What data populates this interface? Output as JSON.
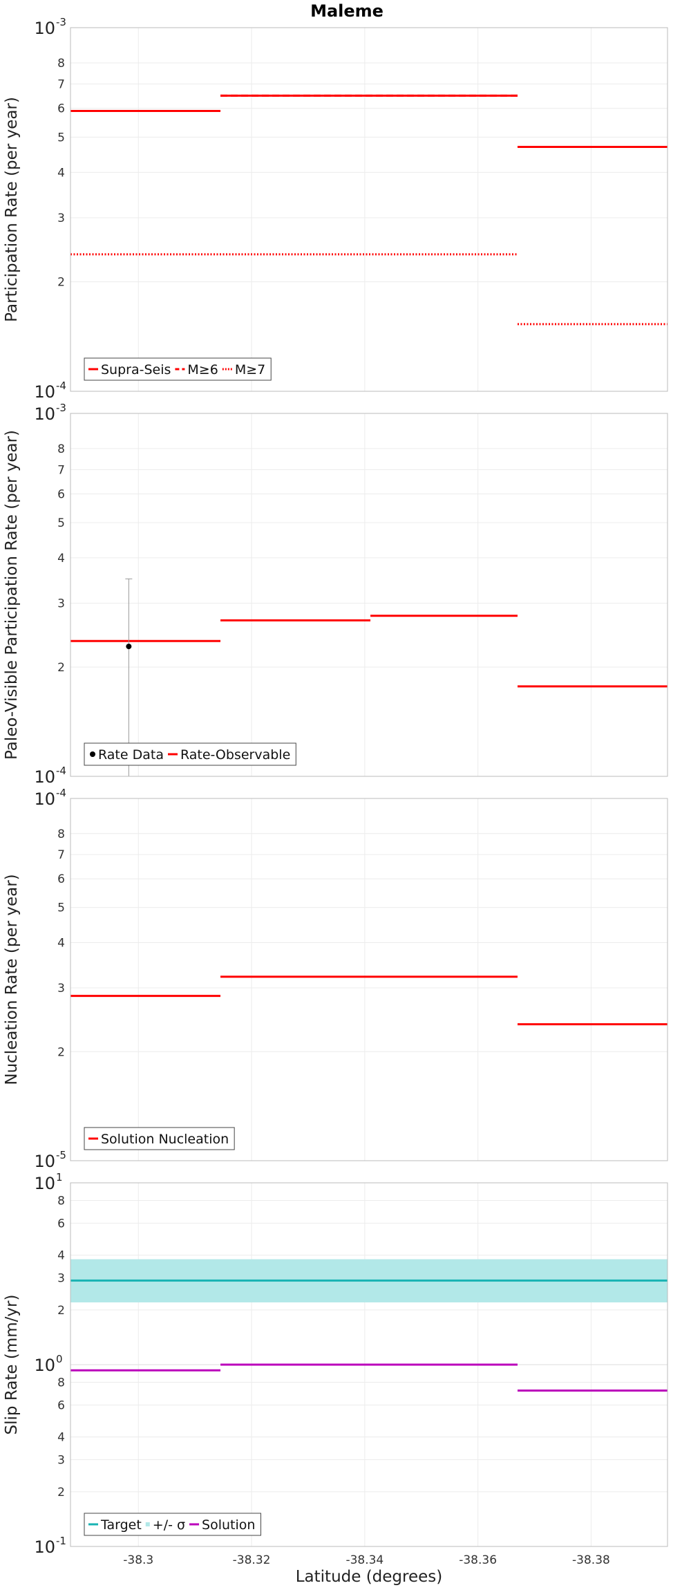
{
  "figure": {
    "title": "Maleme",
    "xlabel": "Latitude (degrees)",
    "xlim": [
      -38.288,
      -38.3935
    ],
    "xticks": [
      -38.3,
      -38.32,
      -38.34,
      -38.36,
      -38.38
    ],
    "xtick_labels": [
      "-38.3",
      "-38.32",
      "-38.34",
      "-38.36",
      "-38.38"
    ]
  },
  "chart_data": [
    {
      "type": "line",
      "title": "Maleme",
      "ylabel": "Participation Rate (per year)",
      "yscale": "log",
      "ylim": [
        0.0001,
        0.001
      ],
      "decade_labels": [
        {
          "base": "10",
          "exp": "-3",
          "value": 0.001
        },
        {
          "base": "10",
          "exp": "-4",
          "value": 0.0001
        }
      ],
      "minor_ticks": [
        {
          "label": "8",
          "value": 0.0008
        },
        {
          "label": "7",
          "value": 0.0007
        },
        {
          "label": "6",
          "value": 0.0006
        },
        {
          "label": "5",
          "value": 0.0005
        },
        {
          "label": "4",
          "value": 0.0004
        },
        {
          "label": "3",
          "value": 0.0003
        },
        {
          "label": "2",
          "value": 0.0002
        }
      ],
      "grid": true,
      "legend_position": "bottom-left",
      "series": [
        {
          "name": "Supra-Seis",
          "color": "#ff0000",
          "style": "solid",
          "segments": [
            {
              "x": [
                -38.288,
                -38.3145
              ],
              "y": 0.00059
            },
            {
              "x": [
                -38.3145,
                -38.367
              ],
              "y": 0.00065
            },
            {
              "x": [
                -38.367,
                -38.3935
              ],
              "y": 0.00047
            }
          ]
        },
        {
          "name": "M≥6",
          "color": "#ff0000",
          "style": "dashed",
          "segments": [
            {
              "x": [
                -38.288,
                -38.3145
              ],
              "y": 0.00059
            },
            {
              "x": [
                -38.3145,
                -38.367
              ],
              "y": 0.00065
            },
            {
              "x": [
                -38.367,
                -38.3935
              ],
              "y": 0.00047
            }
          ]
        },
        {
          "name": "M≥7",
          "color": "#ff0000",
          "style": "dotted",
          "segments": [
            {
              "x": [
                -38.288,
                -38.367
              ],
              "y": 0.000238
            },
            {
              "x": [
                -38.367,
                -38.3935
              ],
              "y": 0.000153
            }
          ]
        }
      ]
    },
    {
      "type": "line",
      "ylabel": "Paleo-Visible Participation Rate (per year)",
      "yscale": "log",
      "ylim": [
        0.0001,
        0.001
      ],
      "decade_labels": [
        {
          "base": "10",
          "exp": "-3",
          "value": 0.001
        },
        {
          "base": "10",
          "exp": "-4",
          "value": 0.0001
        }
      ],
      "minor_ticks": [
        {
          "label": "8",
          "value": 0.0008
        },
        {
          "label": "7",
          "value": 0.0007
        },
        {
          "label": "6",
          "value": 0.0006
        },
        {
          "label": "5",
          "value": 0.0005
        },
        {
          "label": "4",
          "value": 0.0004
        },
        {
          "label": "3",
          "value": 0.0003
        },
        {
          "label": "2",
          "value": 0.0002
        }
      ],
      "grid": true,
      "legend_position": "bottom-left",
      "points": [
        {
          "name": "Rate Data",
          "color": "#000000",
          "x": -38.2983,
          "y": 0.000228,
          "yerr": [
            0.0001,
            0.00035
          ]
        }
      ],
      "series": [
        {
          "name": "Rate-Observable",
          "color": "#ff0000",
          "style": "solid",
          "segments": [
            {
              "x": [
                -38.288,
                -38.3145
              ],
              "y": 0.000236
            },
            {
              "x": [
                -38.3145,
                -38.341
              ],
              "y": 0.000269
            },
            {
              "x": [
                -38.341,
                -38.367
              ],
              "y": 0.000277
            },
            {
              "x": [
                -38.367,
                -38.3935
              ],
              "y": 0.000177
            }
          ]
        }
      ]
    },
    {
      "type": "line",
      "ylabel": "Nucleation Rate (per year)",
      "yscale": "log",
      "ylim": [
        1e-05,
        0.0001
      ],
      "decade_labels": [
        {
          "base": "10",
          "exp": "-4",
          "value": 0.0001
        },
        {
          "base": "10",
          "exp": "-5",
          "value": 1e-05
        }
      ],
      "minor_ticks": [
        {
          "label": "8",
          "value": 8e-05
        },
        {
          "label": "7",
          "value": 7e-05
        },
        {
          "label": "6",
          "value": 6e-05
        },
        {
          "label": "5",
          "value": 5e-05
        },
        {
          "label": "4",
          "value": 4e-05
        },
        {
          "label": "3",
          "value": 3e-05
        },
        {
          "label": "2",
          "value": 2e-05
        }
      ],
      "grid": true,
      "legend_position": "bottom-left",
      "series": [
        {
          "name": "Solution Nucleation",
          "color": "#ff0000",
          "style": "solid",
          "segments": [
            {
              "x": [
                -38.288,
                -38.3145
              ],
              "y": 2.85e-05
            },
            {
              "x": [
                -38.3145,
                -38.367
              ],
              "y": 3.22e-05
            },
            {
              "x": [
                -38.367,
                -38.3935
              ],
              "y": 2.38e-05
            }
          ]
        }
      ]
    },
    {
      "type": "line",
      "ylabel": "Slip Rate (mm/yr)",
      "yscale": "log",
      "ylim": [
        0.1,
        10
      ],
      "decade_labels": [
        {
          "base": "10",
          "exp": "1",
          "value": 10
        },
        {
          "base": "10",
          "exp": "0",
          "value": 1
        },
        {
          "base": "10",
          "exp": "-1",
          "value": 0.1
        }
      ],
      "minor_ticks": [
        {
          "label": "8",
          "value": 8
        },
        {
          "label": "6",
          "value": 6
        },
        {
          "label": "4",
          "value": 4
        },
        {
          "label": "3",
          "value": 3
        },
        {
          "label": "2",
          "value": 2
        },
        {
          "label": "8",
          "value": 0.8
        },
        {
          "label": "6",
          "value": 0.6
        },
        {
          "label": "4",
          "value": 0.4
        },
        {
          "label": "3",
          "value": 0.3
        },
        {
          "label": "2",
          "value": 0.2
        }
      ],
      "grid": true,
      "legend_position": "bottom-left",
      "band": {
        "name": "+/- σ",
        "color": "#b2e8e8",
        "range": [
          2.2,
          3.8
        ]
      },
      "series": [
        {
          "name": "Target",
          "color": "#18b3b3",
          "style": "solid",
          "segments": [
            {
              "x": [
                -38.288,
                -38.3935
              ],
              "y": 2.9
            }
          ]
        },
        {
          "name": "Solution",
          "color": "#bb00bb",
          "style": "solid",
          "segments": [
            {
              "x": [
                -38.288,
                -38.3145
              ],
              "y": 0.93
            },
            {
              "x": [
                -38.3145,
                -38.367
              ],
              "y": 1.0
            },
            {
              "x": [
                -38.367,
                -38.3935
              ],
              "y": 0.72
            }
          ]
        }
      ],
      "legend_order": [
        "Target",
        "+/- σ",
        "Solution"
      ]
    }
  ]
}
